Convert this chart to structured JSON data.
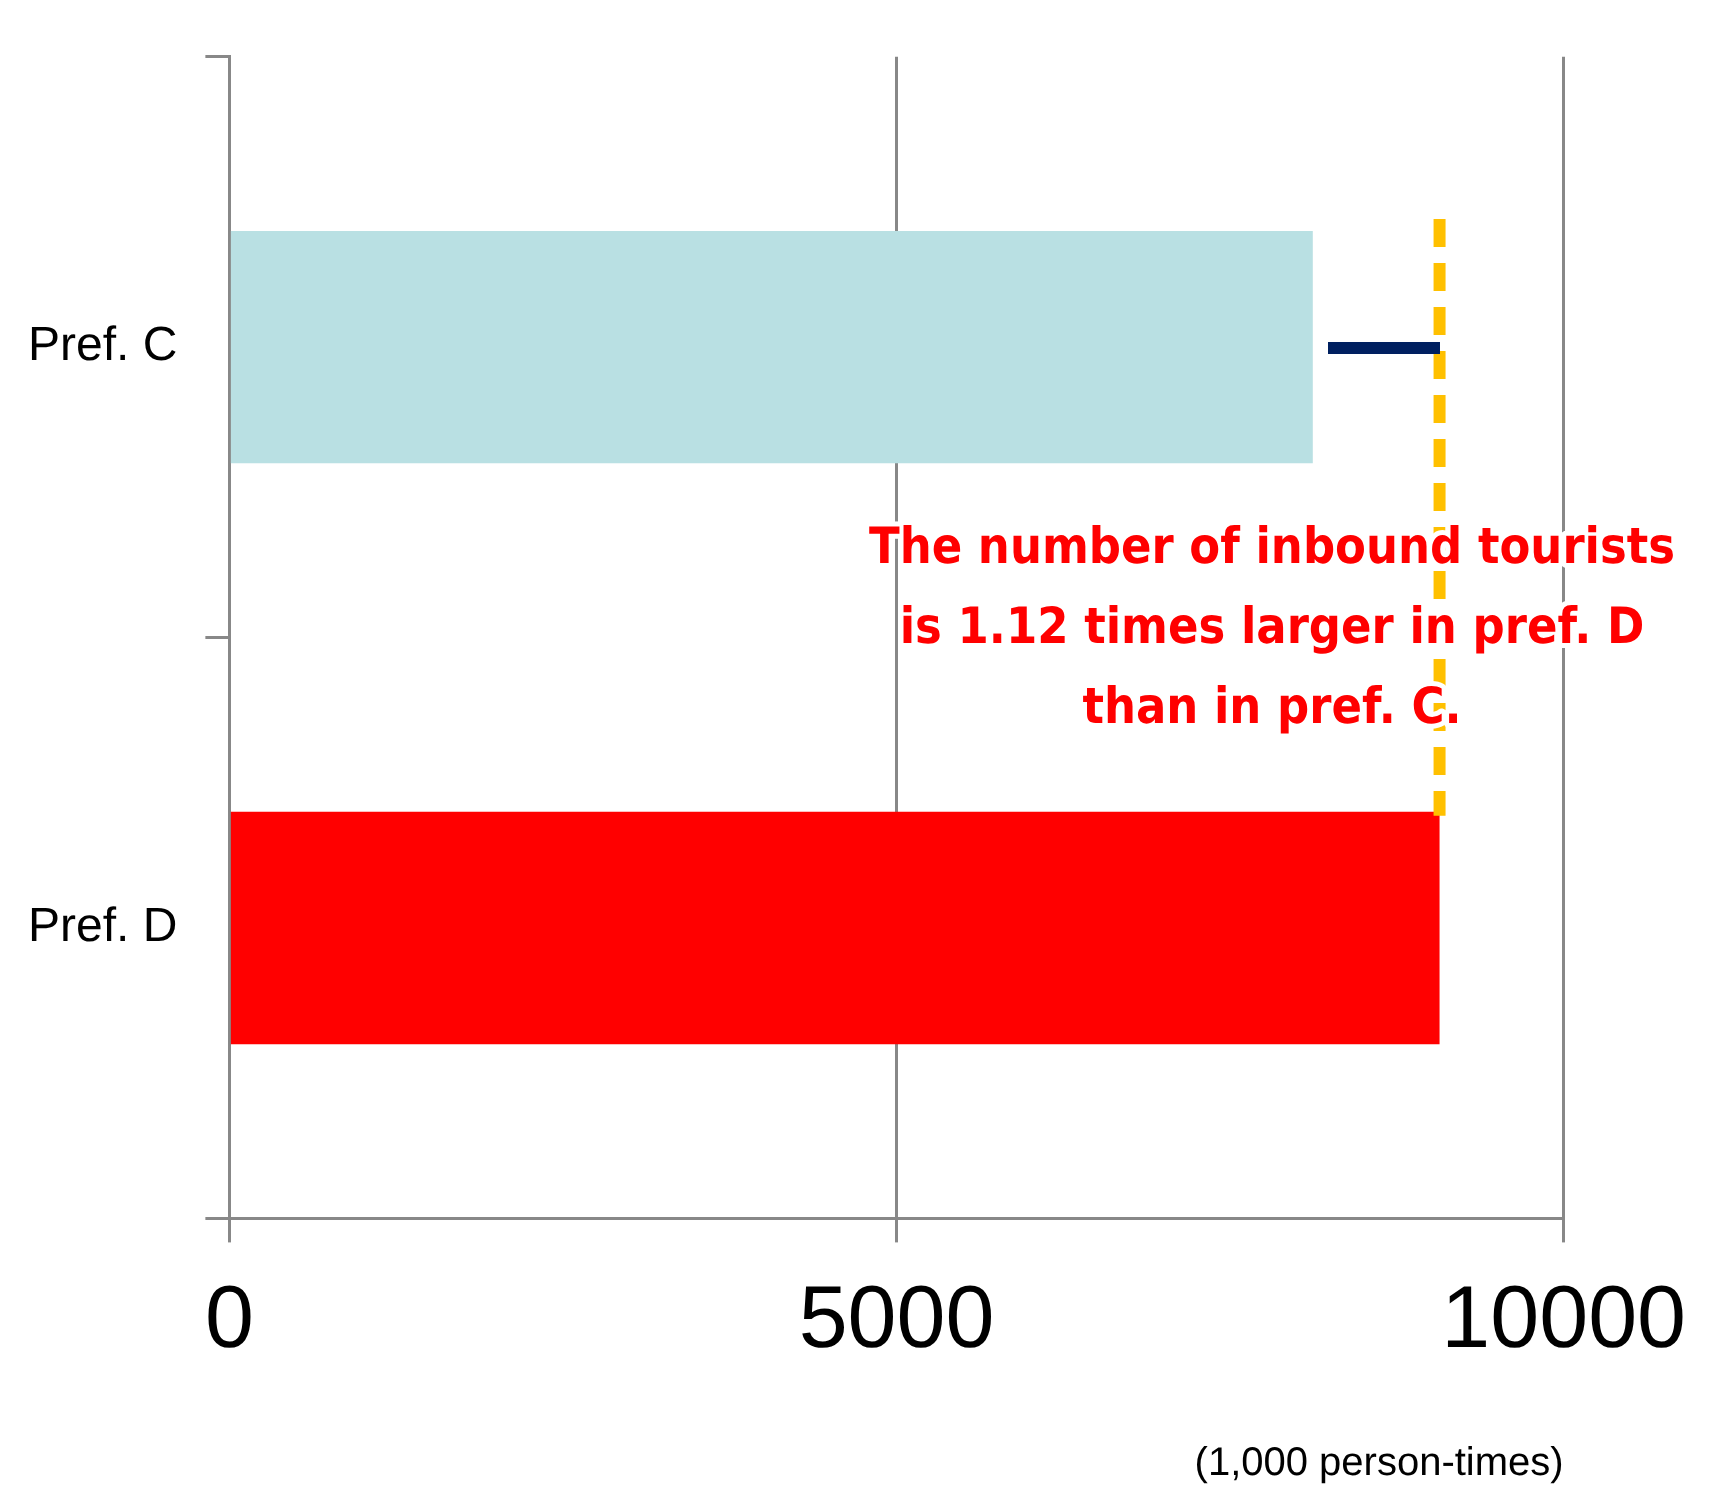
{
  "chart_data": {
    "type": "bar",
    "orientation": "horizontal",
    "categories": [
      "Pref. C",
      "Pref. D"
    ],
    "values": [
      8120,
      9070
    ],
    "colors": [
      "#b9e0e3",
      "#ff0000"
    ],
    "xlim": [
      0,
      10000
    ],
    "xticks": [
      0,
      5000,
      10000
    ],
    "grid": "x",
    "legend": false,
    "xlabel": "(1,000 person-times)",
    "ref_lines": [
      {
        "axis": "x",
        "value": 9070,
        "color": "#ffc000",
        "line_style": "dashed"
      }
    ],
    "annotations": [
      "The number of inbound tourists is 1.12 times larger in pref. D than in pref. C."
    ]
  }
}
